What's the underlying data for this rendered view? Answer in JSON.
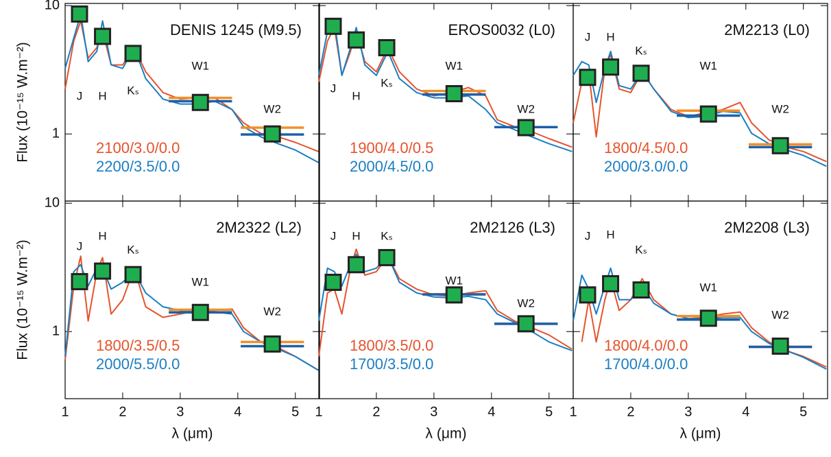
{
  "chart_data": {
    "type": "line",
    "xlabel": "λ (μm)",
    "ylabel": "Flux (10⁻¹⁵ W.m⁻²)",
    "xlim": [
      1,
      5.42
    ],
    "xticks": [
      1,
      2,
      3,
      4,
      5
    ],
    "ylim": [
      0.3,
      10.4
    ],
    "yticks": [
      1,
      10
    ],
    "log_y": true,
    "bands": [
      "J",
      "H",
      "Kₛ",
      "W1",
      "W2"
    ],
    "band_wavelengths": [
      1.25,
      1.65,
      2.18,
      3.35,
      4.6
    ],
    "phot_color": "#1fae4f",
    "panels": [
      {
        "title": "DENIS 1245 (M9.5)",
        "x": [
          1.0,
          1.15,
          1.27,
          1.4,
          1.55,
          1.65,
          1.8,
          2.0,
          2.2,
          2.4,
          2.7,
          3.0,
          3.3,
          3.6,
          3.9,
          4.1,
          4.4,
          4.7,
          5.0,
          5.4
        ],
        "photometry": [
          8.6,
          5.76,
          4.24,
          1.76,
          1.0
        ],
        "series": [
          {
            "name": "2100/3.0/0.0",
            "color": "#e5532d",
            "bar_color": "#f0902a",
            "synthetic": [
              1.91,
              1.12
            ],
            "values": [
              2.24,
              5.3,
              7.6,
              3.9,
              4.7,
              6.3,
              3.45,
              3.45,
              4.7,
              3.05,
              2.1,
              1.87,
              1.91,
              1.91,
              1.55,
              1.22,
              1.01,
              0.95,
              0.86,
              0.73
            ]
          },
          {
            "name": "2200/3.5/0.0",
            "color": "#1a7ec2",
            "bar_color": "#1f5fa8",
            "synthetic": [
              1.8,
              0.99
            ],
            "values": [
              3.24,
              5.6,
              8.6,
              3.66,
              4.4,
              7.6,
              3.45,
              3.24,
              4.7,
              2.7,
              1.87,
              1.71,
              1.71,
              1.8,
              1.55,
              1.14,
              0.95,
              0.84,
              0.75,
              0.6
            ]
          }
        ]
      },
      {
        "title": "EROS0032 (L0)",
        "x": [
          1.0,
          1.15,
          1.27,
          1.4,
          1.55,
          1.65,
          1.8,
          2.0,
          2.2,
          2.4,
          2.7,
          3.0,
          3.3,
          3.6,
          3.9,
          4.1,
          4.4,
          4.7,
          5.0,
          5.4
        ],
        "photometry": [
          6.9,
          5.4,
          4.7,
          2.06,
          1.12
        ],
        "series": [
          {
            "name": "1900/4.0/0.5",
            "color": "#e5532d",
            "bar_color": "#f0902a",
            "synthetic": [
              2.16,
              1.13
            ],
            "values": [
              2.54,
              5.3,
              6.75,
              2.86,
              4.4,
              6.3,
              3.66,
              3.05,
              4.7,
              3.05,
              2.24,
              1.98,
              2.1,
              2.3,
              1.98,
              1.29,
              1.14,
              1.04,
              0.92,
              0.79
            ]
          },
          {
            "name": "2000/4.5/0.0",
            "color": "#1a7ec2",
            "bar_color": "#1f5fa8",
            "synthetic": [
              2.03,
              1.13
            ],
            "values": [
              2.86,
              6.3,
              7.6,
              2.86,
              4.7,
              6.75,
              3.45,
              2.86,
              4.4,
              2.7,
              2.1,
              1.91,
              1.91,
              1.98,
              1.55,
              1.22,
              1.08,
              0.95,
              0.84,
              0.73
            ]
          }
        ]
      },
      {
        "title": "2M2213 (L0)",
        "x": [
          1.0,
          1.15,
          1.27,
          1.4,
          1.55,
          1.65,
          1.8,
          2.0,
          2.2,
          2.4,
          2.7,
          3.0,
          3.3,
          3.6,
          3.9,
          4.1,
          4.4,
          4.7,
          5.0,
          5.4
        ],
        "photometry": [
          2.76,
          3.32,
          2.97,
          1.43,
          0.81
        ],
        "series": [
          {
            "name": "1800/4.5/0.0",
            "color": "#e5532d",
            "bar_color": "#f0902a",
            "synthetic": [
              1.52,
              0.83
            ],
            "values": [
              1.22,
              2.54,
              3.05,
              0.95,
              3.24,
              4.14,
              2.24,
              2.1,
              3.05,
              2.24,
              1.55,
              1.37,
              1.46,
              1.55,
              1.76,
              1.22,
              0.9,
              0.79,
              0.73,
              0.61
            ]
          },
          {
            "name": "2000/3.0/0.0",
            "color": "#1a7ec2",
            "bar_color": "#1f5fa8",
            "synthetic": [
              1.39,
              0.79
            ],
            "values": [
              2.86,
              3.66,
              3.45,
              1.76,
              3.24,
              4.4,
              2.38,
              2.24,
              3.05,
              2.24,
              1.5,
              1.34,
              1.37,
              1.5,
              1.46,
              1.01,
              0.84,
              0.75,
              0.68,
              0.56
            ]
          }
        ]
      },
      {
        "title": "2M2322 (L2)",
        "x": [
          1.0,
          1.15,
          1.27,
          1.4,
          1.55,
          1.65,
          1.8,
          2.0,
          2.2,
          2.4,
          2.7,
          3.0,
          3.3,
          3.6,
          3.9,
          4.1,
          4.4,
          4.7,
          5.0,
          5.4
        ],
        "photometry": [
          2.45,
          2.96,
          2.78,
          1.41,
          0.8
        ],
        "series": [
          {
            "name": "1800/3.5/0.5",
            "color": "#e5532d",
            "bar_color": "#f0902a",
            "synthetic": [
              1.48,
              0.83
            ],
            "values": [
              0.6,
              2.27,
              3.87,
              1.21,
              2.93,
              3.77,
              1.37,
              1.77,
              3.12,
              1.56,
              1.29,
              1.37,
              1.46,
              1.46,
              1.5,
              1.07,
              0.83,
              0.75,
              0.64,
              0.5
            ]
          },
          {
            "name": "2000/5.5/0.0",
            "color": "#1a7ec2",
            "bar_color": "#1f5fa8",
            "synthetic": [
              1.41,
              0.77
            ],
            "values": [
              0.64,
              2.93,
              3.32,
              2.27,
              3.12,
              3.12,
              2.14,
              2.42,
              2.93,
              2.0,
              1.56,
              1.46,
              1.46,
              1.42,
              1.37,
              1.0,
              0.83,
              0.73,
              0.64,
              0.5
            ]
          }
        ]
      },
      {
        "title": "2M2126 (L3)",
        "x": [
          1.0,
          1.15,
          1.27,
          1.4,
          1.55,
          1.65,
          1.8,
          2.0,
          2.2,
          2.4,
          2.7,
          3.0,
          3.3,
          3.6,
          3.9,
          4.1,
          4.4,
          4.7,
          5.0,
          5.4
        ],
        "photometry": [
          2.42,
          3.32,
          3.77,
          1.93,
          1.15
        ],
        "series": [
          {
            "name": "1800/3.5/0.0",
            "color": "#e5532d",
            "bar_color": "#f0902a",
            "synthetic": [
              1.95,
              1.15
            ],
            "values": [
              0.64,
              2.0,
              2.14,
              1.37,
              3.12,
              4.39,
              2.75,
              2.93,
              3.87,
              2.58,
              2.14,
              1.93,
              1.88,
              2.0,
              2.08,
              1.46,
              1.21,
              1.07,
              0.94,
              0.73
            ]
          },
          {
            "name": "1700/3.5/0.0",
            "color": "#1a7ec2",
            "bar_color": "#1f5fa8",
            "synthetic": [
              1.95,
              1.15
            ],
            "values": [
              1.21,
              3.12,
              2.93,
              2.27,
              3.32,
              4.01,
              2.93,
              3.12,
              3.87,
              2.42,
              2.0,
              1.86,
              1.83,
              1.88,
              1.77,
              1.37,
              1.18,
              1.0,
              0.83,
              0.71
            ]
          }
        ]
      },
      {
        "title": "2M2208 (L3)",
        "x": [
          1.0,
          1.15,
          1.27,
          1.4,
          1.55,
          1.65,
          1.8,
          2.0,
          2.2,
          2.4,
          2.7,
          3.0,
          3.3,
          3.6,
          3.9,
          4.1,
          4.4,
          4.7,
          5.0,
          5.4
        ],
        "photometry": [
          1.93,
          2.36,
          2.11,
          1.27,
          0.77
        ],
        "series": [
          {
            "name": "1800/4.0/0.0",
            "color": "#e5532d",
            "bar_color": "#f0902a",
            "synthetic": [
              1.32,
              0.76
            ],
            "values": [
              null,
              0.83,
              1.77,
              0.83,
              1.77,
              2.58,
              1.46,
              1.77,
              2.58,
              1.77,
              1.37,
              1.26,
              1.29,
              1.37,
              1.42,
              1.07,
              0.83,
              0.71,
              0.64,
              0.53
            ]
          },
          {
            "name": "1700/4.0/0.0",
            "color": "#1a7ec2",
            "bar_color": "#1f5fa8",
            "synthetic": [
              1.24,
              0.76
            ],
            "values": [
              1.21,
              2.75,
              2.14,
              1.37,
              2.27,
              3.12,
              1.77,
              1.77,
              2.27,
              1.66,
              1.37,
              1.26,
              1.26,
              1.29,
              1.29,
              1.0,
              0.81,
              0.71,
              0.63,
              0.51
            ]
          }
        ]
      }
    ]
  }
}
